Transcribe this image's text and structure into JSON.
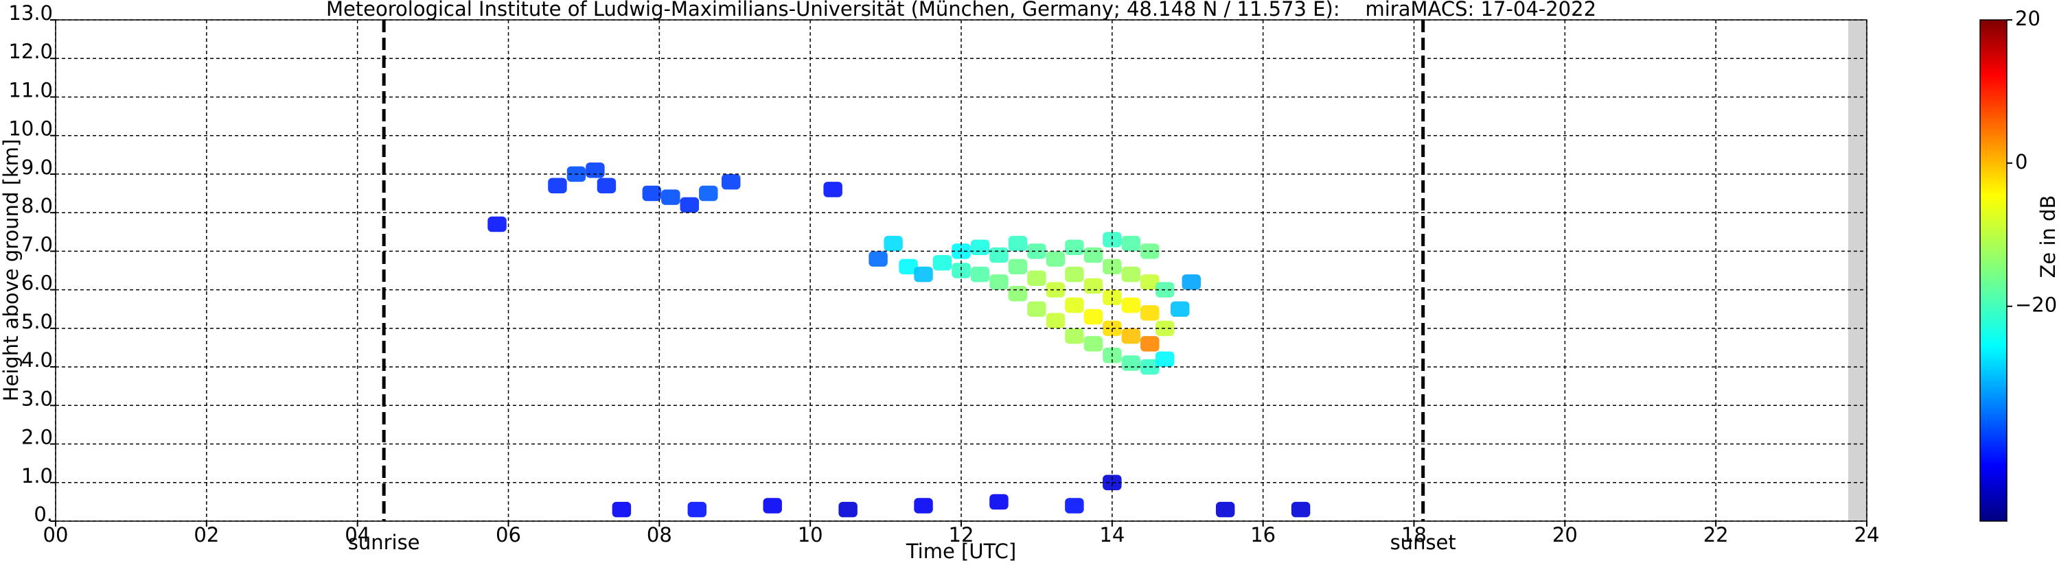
{
  "chart_data": {
    "type": "heatmap",
    "title": "Meteorological Institute of Ludwig-Maximilians-Universität (München, Germany; 48.148 N / 11.573 E):    miraMACS: 17-04-2022",
    "xlabel": "Time [UTC]",
    "ylabel": "Height above ground [km]",
    "colorbar_label": "Ze in dB",
    "xlim": [
      0,
      24
    ],
    "xticks": [
      {
        "value": 0,
        "label": "00"
      },
      {
        "value": 2,
        "label": "02"
      },
      {
        "value": 4,
        "label": "04"
      },
      {
        "value": 6,
        "label": "06"
      },
      {
        "value": 8,
        "label": "08"
      },
      {
        "value": 10,
        "label": "10"
      },
      {
        "value": 12,
        "label": "12"
      },
      {
        "value": 14,
        "label": "14"
      },
      {
        "value": 16,
        "label": "16"
      },
      {
        "value": 18,
        "label": "18"
      },
      {
        "value": 20,
        "label": "20"
      },
      {
        "value": 22,
        "label": "22"
      },
      {
        "value": 24,
        "label": "24"
      }
    ],
    "ylim": [
      0,
      13
    ],
    "yticks": [
      {
        "value": 0,
        "label": "0."
      },
      {
        "value": 1,
        "label": "1.0"
      },
      {
        "value": 2,
        "label": "2.0"
      },
      {
        "value": 3,
        "label": "3.0"
      },
      {
        "value": 4,
        "label": "4.0"
      },
      {
        "value": 5,
        "label": "5.0"
      },
      {
        "value": 6,
        "label": "6.0"
      },
      {
        "value": 7,
        "label": "7.0"
      },
      {
        "value": 8,
        "label": "8.0"
      },
      {
        "value": 9,
        "label": "9.0"
      },
      {
        "value": 10,
        "label": "10.0"
      },
      {
        "value": 11,
        "label": "11.0"
      },
      {
        "value": 12,
        "label": "12.0"
      },
      {
        "value": 13,
        "label": "13.0"
      }
    ],
    "zlim": [
      -50,
      20
    ],
    "zticks": [
      20,
      0,
      {
        "value": -20,
        "label": "−20"
      }
    ],
    "colormap": "jet",
    "grid": true,
    "annotations": [
      {
        "label": "sunrise",
        "x": 4.35
      },
      {
        "label": "sunset",
        "x": 18.12
      }
    ],
    "echoes": {
      "time": [
        5.85,
        6.65,
        6.9,
        7.15,
        7.3,
        7.9,
        8.15,
        8.4,
        8.65,
        8.95,
        10.3,
        10.9,
        11.1,
        11.3,
        11.5,
        11.75,
        12.0,
        12.0,
        12.25,
        12.25,
        12.5,
        12.5,
        12.75,
        12.75,
        12.75,
        13.0,
        13.0,
        13.0,
        13.25,
        13.25,
        13.25,
        13.5,
        13.5,
        13.5,
        13.5,
        13.75,
        13.75,
        13.75,
        13.75,
        14.0,
        14.0,
        14.0,
        14.0,
        14.0,
        14.25,
        14.25,
        14.25,
        14.25,
        14.25,
        14.5,
        14.5,
        14.5,
        14.5,
        14.5,
        14.7,
        14.7,
        14.7,
        14.9,
        15.05,
        7.5,
        8.5,
        9.5,
        10.5,
        11.5,
        12.5,
        13.5,
        14.0,
        15.5,
        16.5
      ],
      "height": [
        7.7,
        8.7,
        9.0,
        9.1,
        8.7,
        8.5,
        8.4,
        8.2,
        8.5,
        8.8,
        8.6,
        6.8,
        7.2,
        6.6,
        6.4,
        6.7,
        6.5,
        7.0,
        6.4,
        7.1,
        6.2,
        6.9,
        5.9,
        6.6,
        7.2,
        5.5,
        6.3,
        7.0,
        5.2,
        6.0,
        6.8,
        4.8,
        5.6,
        6.4,
        7.1,
        4.6,
        5.3,
        6.1,
        6.9,
        4.3,
        5.0,
        5.8,
        6.6,
        7.3,
        4.1,
        4.8,
        5.6,
        6.4,
        7.2,
        4.0,
        4.6,
        5.4,
        6.2,
        7.0,
        4.2,
        5.0,
        6.0,
        5.5,
        6.2,
        0.3,
        0.3,
        0.4,
        0.3,
        0.4,
        0.5,
        0.4,
        1.0,
        0.3,
        0.3
      ],
      "ze": [
        -40,
        -38,
        -36,
        -37,
        -38,
        -37,
        -36,
        -38,
        -35,
        -37,
        -40,
        -34,
        -26,
        -24,
        -28,
        -22,
        -20,
        -24,
        -18,
        -22,
        -16,
        -20,
        -14,
        -16,
        -20,
        -12,
        -12,
        -18,
        -10,
        -10,
        -16,
        -12,
        -8,
        -12,
        -18,
        -14,
        -6,
        -10,
        -16,
        -16,
        -4,
        -8,
        -14,
        -20,
        -18,
        -2,
        -6,
        -12,
        -18,
        -20,
        2,
        -4,
        -10,
        -16,
        -24,
        -10,
        -18,
        -28,
        -30,
        -42,
        -40,
        -42,
        -44,
        -42,
        -42,
        -40,
        -44,
        -44,
        -44
      ]
    }
  }
}
